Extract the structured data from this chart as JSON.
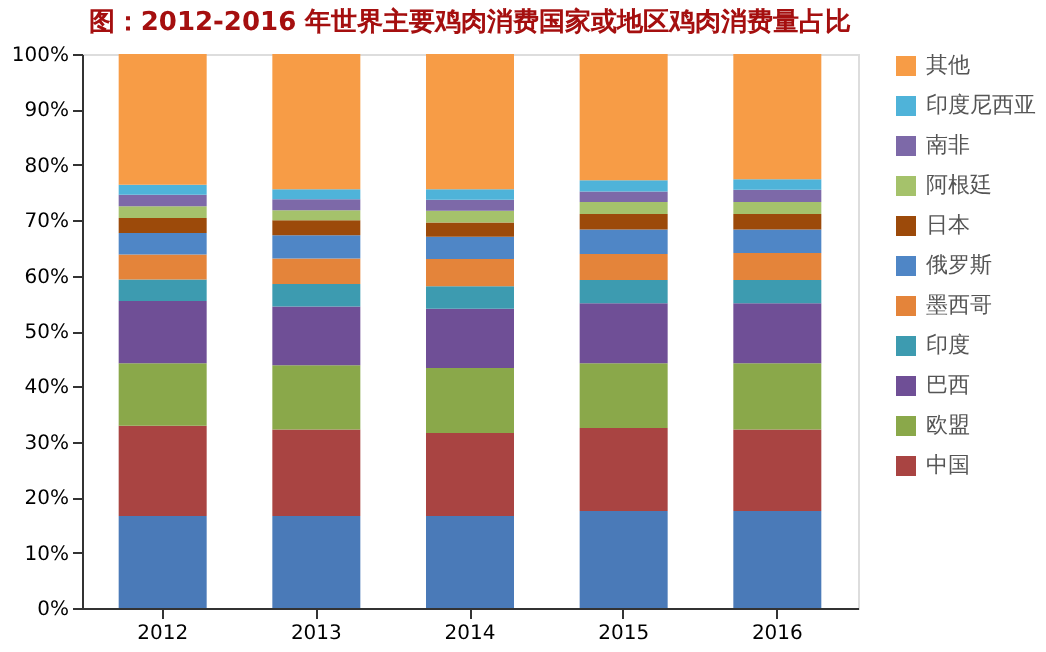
{
  "chart_data": {
    "type": "bar",
    "stacked": true,
    "title": "图：2012-2016 年世界主要鸡肉消费国家或地区鸡肉消费量占比",
    "categories": [
      "2012",
      "2013",
      "2014",
      "2015",
      "2016"
    ],
    "series": [
      {
        "color": "#4a7ab8",
        "values": [
          16.6,
          16.6,
          16.6,
          17.5,
          17.5
        ]
      },
      {
        "name": "中国",
        "color": "#a94442",
        "values": [
          16.3,
          15.6,
          15.0,
          15.0,
          14.7
        ]
      },
      {
        "name": "欧盟",
        "color": "#8aa84a",
        "values": [
          11.3,
          11.6,
          11.7,
          11.7,
          12.0
        ]
      },
      {
        "name": "巴西",
        "color": "#6f4f96",
        "values": [
          11.2,
          10.6,
          10.7,
          10.8,
          10.8
        ]
      },
      {
        "name": "印度",
        "color": "#3d9bb0",
        "values": [
          3.9,
          4.1,
          4.1,
          4.2,
          4.2
        ]
      },
      {
        "name": "墨西哥",
        "color": "#e4843a",
        "values": [
          4.5,
          4.6,
          4.9,
          4.7,
          4.9
        ]
      },
      {
        "name": "俄罗斯",
        "color": "#4f86c6",
        "values": [
          3.9,
          4.2,
          4.0,
          4.4,
          4.2
        ]
      },
      {
        "name": "日本",
        "color": "#9c4a0a",
        "values": [
          2.7,
          2.7,
          2.6,
          2.8,
          2.8
        ]
      },
      {
        "name": "阿根廷",
        "color": "#a5c26b",
        "values": [
          2.1,
          1.8,
          2.1,
          2.2,
          2.2
        ]
      },
      {
        "name": "南非",
        "color": "#7d69a8",
        "values": [
          2.1,
          2.0,
          2.0,
          1.9,
          2.2
        ]
      },
      {
        "name": "印度尼西亚",
        "color": "#4fb3d9",
        "values": [
          1.8,
          1.8,
          1.9,
          2.0,
          1.9
        ]
      },
      {
        "name": "其他",
        "color": "#f79c46",
        "values": [
          23.6,
          24.4,
          24.4,
          22.8,
          22.6
        ]
      }
    ],
    "ylim": [
      0,
      100
    ],
    "yticks": [
      {
        "value": 0,
        "label": "0%"
      },
      {
        "value": 10,
        "label": "10%"
      },
      {
        "value": 20,
        "label": "20%"
      },
      {
        "value": 30,
        "label": "30%"
      },
      {
        "value": 40,
        "label": "40%"
      },
      {
        "value": 50,
        "label": "50%"
      },
      {
        "value": 60,
        "label": "60%"
      },
      {
        "value": 70,
        "label": "70%"
      },
      {
        "value": 80,
        "label": "80%"
      },
      {
        "value": 90,
        "label": "90%"
      },
      {
        "value": 100,
        "label": "100%"
      }
    ],
    "grid": false,
    "legend": "right"
  }
}
